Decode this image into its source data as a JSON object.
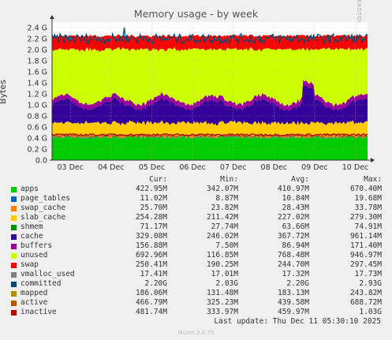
{
  "chart_data": {
    "type": "area",
    "title": "Memory usage - by week",
    "ylabel": "Bytes",
    "side_text": "RRDTOOL / TOBI OETIKER",
    "x_ticks": [
      "03 Dec",
      "04 Dec",
      "05 Dec",
      "06 Dec",
      "07 Dec",
      "08 Dec",
      "09 Dec",
      "10 Dec"
    ],
    "y_ticks": [
      "0.0",
      "0.2 G",
      "0.4 G",
      "0.6 G",
      "0.8 G",
      "1.0 G",
      "1.2 G",
      "1.4 G",
      "1.6 G",
      "1.8 G",
      "2.0 G",
      "2.2 G",
      "2.4 G"
    ],
    "ylim": [
      0,
      2.5
    ],
    "grid": true,
    "stack_order": [
      "apps",
      "page_tables",
      "swap_cache",
      "slab_cache",
      "cache",
      "buffers",
      "unused",
      "swap"
    ],
    "series": [
      {
        "name": "apps",
        "color": "#00cc00",
        "mean_g": 0.41
      },
      {
        "name": "page_tables",
        "color": "#0066b3",
        "mean_g": 0.011
      },
      {
        "name": "swap_cache",
        "color": "#ff8000",
        "mean_g": 0.028
      },
      {
        "name": "slab_cache",
        "color": "#ffcc00",
        "mean_g": 0.227
      },
      {
        "name": "cache",
        "color": "#330099",
        "mean_g": 0.368
      },
      {
        "name": "buffers",
        "color": "#990099",
        "mean_g": 0.087
      },
      {
        "name": "unused",
        "color": "#ccff00",
        "mean_g": 0.768
      },
      {
        "name": "swap",
        "color": "#ff0000",
        "mean_g": 0.245
      },
      {
        "name": "committed",
        "color": "#004b6e",
        "mean_g": 2.2
      },
      {
        "name": "active",
        "color": "#b35a00",
        "mean_g": 0.44
      },
      {
        "name": "inactive",
        "color": "#b30000",
        "mean_g": 0.46
      }
    ]
  },
  "legend": {
    "headers": [
      "Cur:",
      "Min:",
      "Avg:",
      "Max:"
    ],
    "rows": [
      {
        "name": "apps",
        "color": "#00cc00",
        "cur": "422.95M",
        "min": "342.07M",
        "avg": "410.97M",
        "max": "670.40M"
      },
      {
        "name": "page_tables",
        "color": "#0066b3",
        "cur": "11.02M",
        "min": "8.87M",
        "avg": "10.84M",
        "max": "19.68M"
      },
      {
        "name": "swap_cache",
        "color": "#ff8000",
        "cur": "25.70M",
        "min": "23.82M",
        "avg": "28.43M",
        "max": "33.78M"
      },
      {
        "name": "slab_cache",
        "color": "#ffcc00",
        "cur": "254.28M",
        "min": "211.42M",
        "avg": "227.02M",
        "max": "279.30M"
      },
      {
        "name": "shmem",
        "color": "#008f00",
        "cur": "71.17M",
        "min": "27.74M",
        "avg": "63.66M",
        "max": "74.91M"
      },
      {
        "name": "cache",
        "color": "#330099",
        "cur": "329.08M",
        "min": "246.02M",
        "avg": "367.72M",
        "max": "961.14M"
      },
      {
        "name": "buffers",
        "color": "#990099",
        "cur": "156.88M",
        "min": "7.50M",
        "avg": "86.94M",
        "max": "171.40M"
      },
      {
        "name": "unused",
        "color": "#ccff00",
        "cur": "692.96M",
        "min": "116.85M",
        "avg": "768.48M",
        "max": "946.97M"
      },
      {
        "name": "swap",
        "color": "#ff0000",
        "cur": "250.41M",
        "min": "190.25M",
        "avg": "244.70M",
        "max": "297.45M"
      },
      {
        "name": "vmalloc_used",
        "color": "#808080",
        "cur": "17.41M",
        "min": "17.01M",
        "avg": "17.32M",
        "max": "17.73M"
      },
      {
        "name": "committed",
        "color": "#004b6e",
        "cur": "2.20G",
        "min": "2.03G",
        "avg": "2.20G",
        "max": "2.93G"
      },
      {
        "name": "mapped",
        "color": "#b38f00",
        "cur": "186.06M",
        "min": "131.48M",
        "avg": "183.13M",
        "max": "243.82M"
      },
      {
        "name": "active",
        "color": "#b35a00",
        "cur": "466.79M",
        "min": "325.23M",
        "avg": "439.58M",
        "max": "688.72M"
      },
      {
        "name": "inactive",
        "color": "#b30000",
        "cur": "481.74M",
        "min": "333.97M",
        "avg": "459.97M",
        "max": "1.03G"
      }
    ]
  },
  "last_update": "Last update: Thu Dec 11 05:30:10 2025",
  "version": "Munin 2.0.75"
}
